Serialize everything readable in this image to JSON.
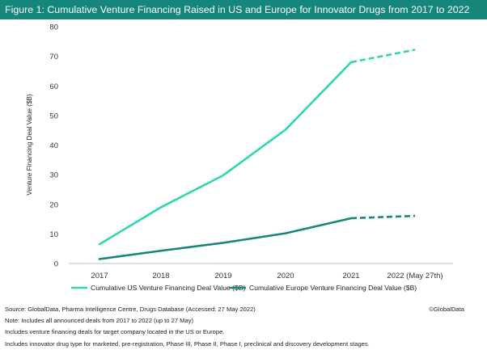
{
  "figure_title": "Figure 1: Cumulative Venture Financing Raised in US and Europe for Innovator Drugs from 2017 to 2022",
  "colors": {
    "us": "#2ed6b3",
    "europe": "#16857a",
    "title_bg": "#16857a"
  },
  "footer": {
    "source": "Source: GlobalData, Pharma Intelligence Centre, Drugs Database (Accessed: 27 May 2022)",
    "credit": "©GlobalData",
    "notes": [
      "Note: Includes all announced deals from 2017 to 2022 (up to 27 May)",
      "Includes venture financing deals for target company located in the US or Europe.",
      "Includes innovator drug type for marketed, pre-registration, Phase III, Phase II, Phase I, preclinical and discovery development stages."
    ]
  },
  "chart_data": {
    "type": "line",
    "categories": [
      "2017",
      "2018",
      "2019",
      "2020",
      "2021",
      "2022 (May 27th)"
    ],
    "series": [
      {
        "name": "Cumulative US Venture Financing Deal Value ($B)",
        "values": [
          6.5,
          19,
          29.8,
          45.2,
          68,
          72.2
        ],
        "dashed_from_index": 4
      },
      {
        "name": "Cumulative Europe Venture Financing Deal Value ($B)",
        "values": [
          1.5,
          4.3,
          7,
          10.2,
          15.3,
          16.1
        ],
        "dashed_from_index": 4
      }
    ],
    "ylabel": "Venture Financing Deal Value ($B)",
    "ylim": [
      0,
      80
    ],
    "yticks": [
      "0",
      "10",
      "20",
      "30",
      "40",
      "50",
      "60",
      "70",
      "80"
    ],
    "grid": false,
    "legend_position": "bottom"
  }
}
